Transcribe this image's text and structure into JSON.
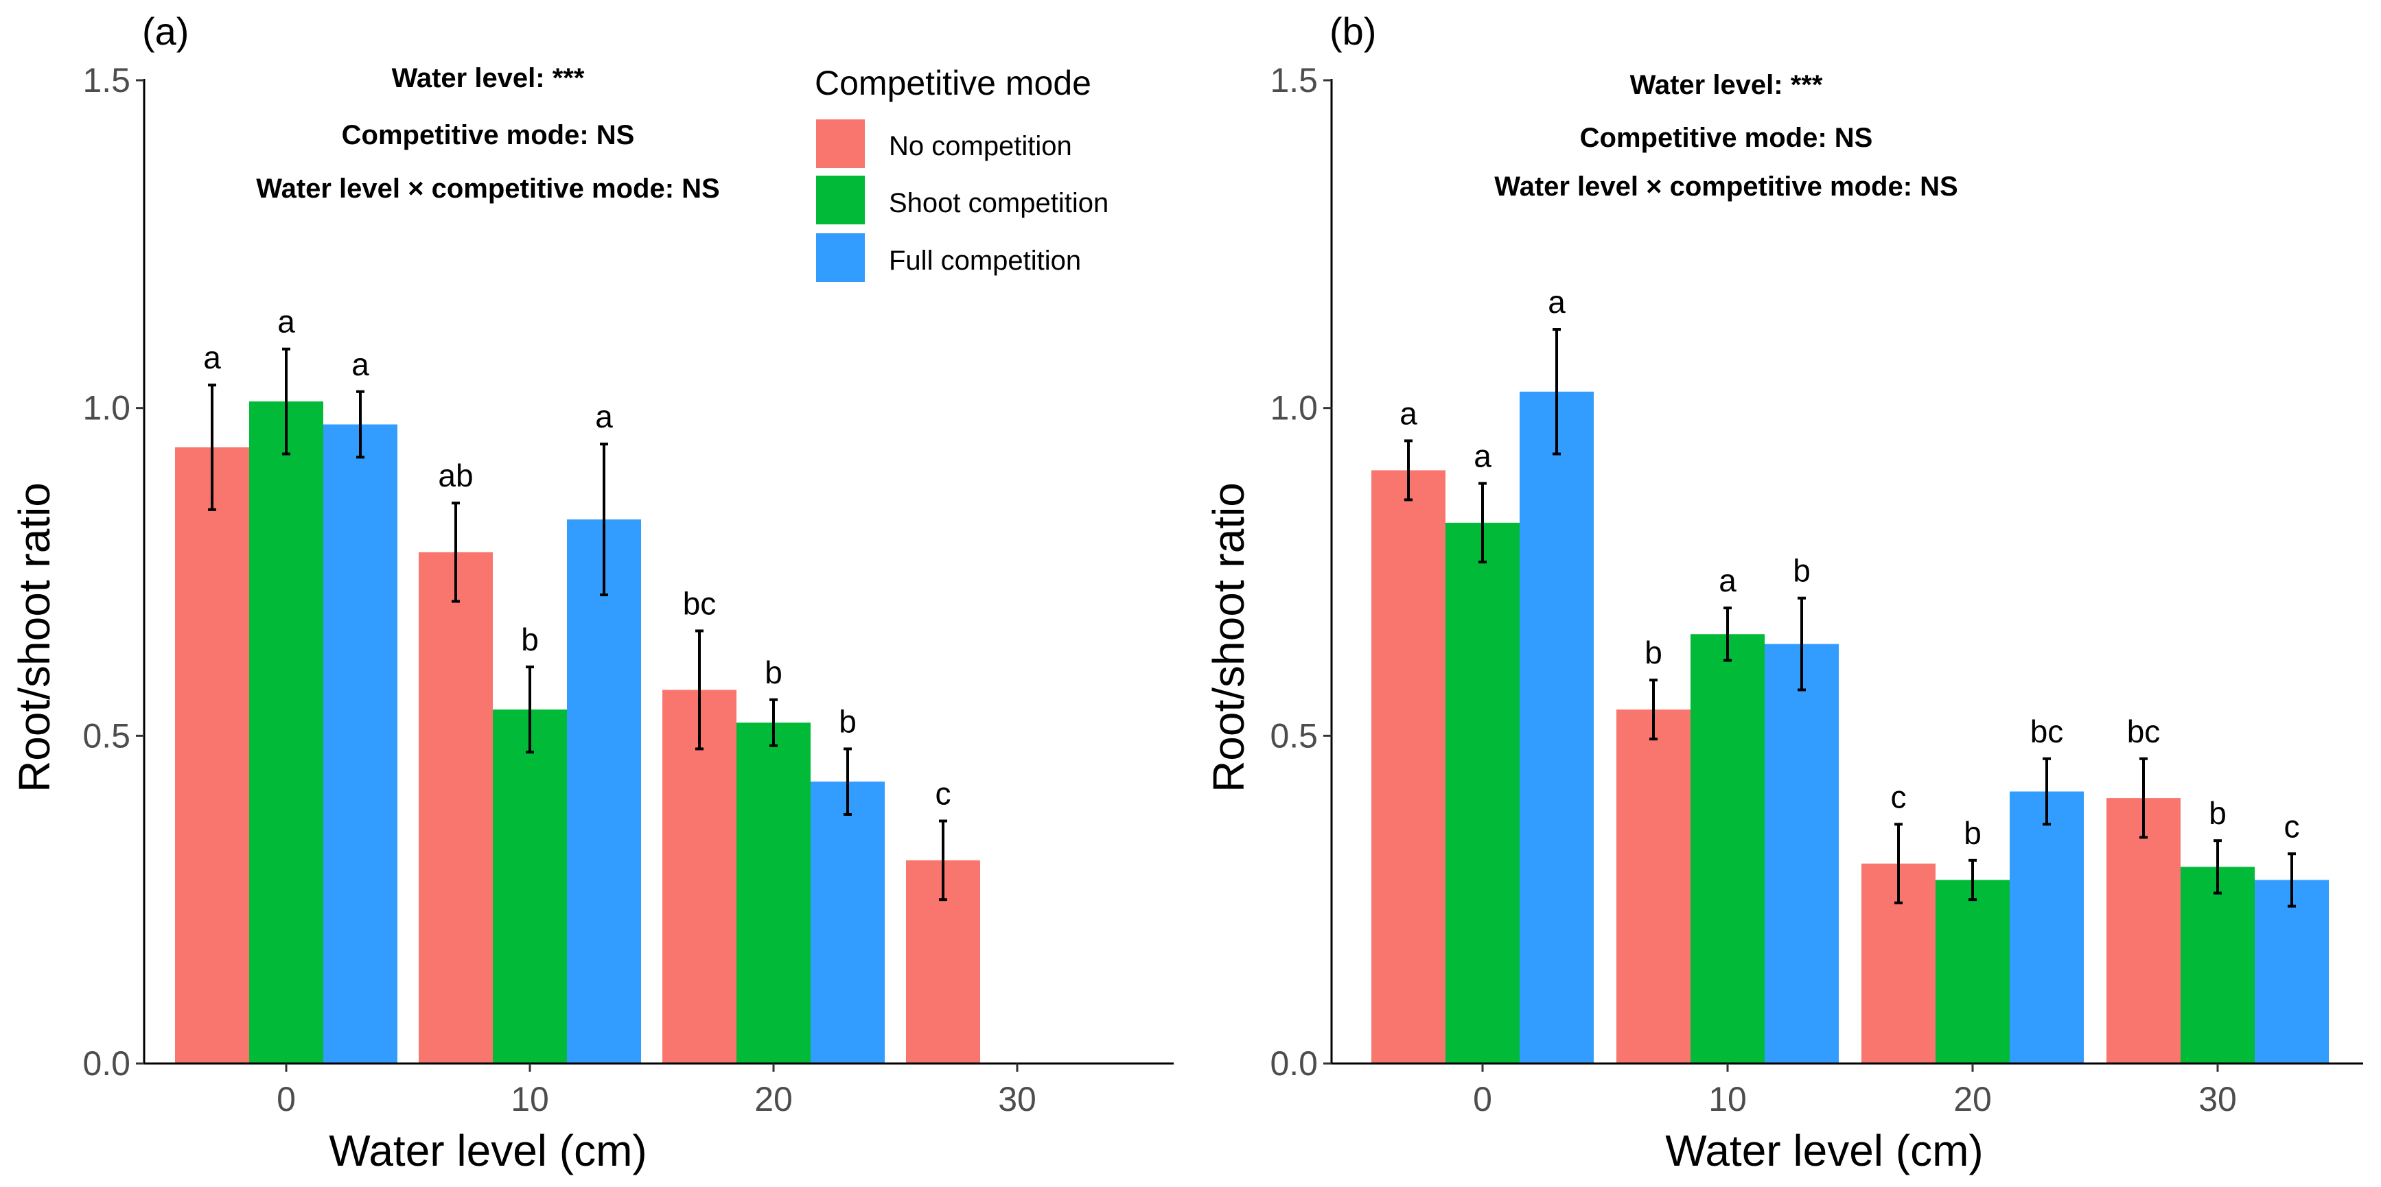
{
  "chart_data": [
    {
      "type": "bar",
      "panel_label": "(a)",
      "categories": [
        "0",
        "10",
        "20",
        "30"
      ],
      "xlabel": "Water level (cm)",
      "ylabel": "Root/shoot ratio",
      "ylim": [
        0,
        1.5
      ],
      "yticks": [
        "0.0",
        "0.5",
        "1.0",
        "1.5"
      ],
      "grid": false,
      "series": [
        {
          "name": "No competition",
          "values": [
            0.94,
            0.78,
            0.57,
            0.31
          ],
          "errors": [
            0.095,
            0.075,
            0.09,
            0.06
          ],
          "letters": [
            "a",
            "ab",
            "bc",
            "c"
          ]
        },
        {
          "name": "Shoot competition",
          "values": [
            1.01,
            0.54,
            0.52,
            null
          ],
          "errors": [
            0.08,
            0.065,
            0.035,
            null
          ],
          "letters": [
            "a",
            "b",
            "b",
            null
          ]
        },
        {
          "name": "Full competition",
          "values": [
            0.975,
            0.83,
            0.43,
            null
          ],
          "errors": [
            0.05,
            0.115,
            0.05,
            null
          ],
          "letters": [
            "a",
            "a",
            "b",
            null
          ]
        }
      ],
      "annotations": [
        "Water level: ***",
        "Competitive mode: NS",
        "Water level × competitive mode: NS"
      ]
    },
    {
      "type": "bar",
      "panel_label": "(b)",
      "categories": [
        "0",
        "10",
        "20",
        "30"
      ],
      "xlabel": "Water level (cm)",
      "ylabel": "Root/shoot ratio",
      "ylim": [
        0,
        1.5
      ],
      "yticks": [
        "0.0",
        "0.5",
        "1.0",
        "1.5"
      ],
      "grid": false,
      "series": [
        {
          "name": "No competition",
          "values": [
            0.905,
            0.54,
            0.305,
            0.405
          ],
          "errors": [
            0.045,
            0.045,
            0.06,
            0.06
          ],
          "letters": [
            "a",
            "b",
            "c",
            "bc"
          ]
        },
        {
          "name": "Shoot competition",
          "values": [
            0.825,
            0.655,
            0.28,
            0.3
          ],
          "errors": [
            0.06,
            0.04,
            0.03,
            0.04
          ],
          "letters": [
            "a",
            "a",
            "b",
            "b"
          ]
        },
        {
          "name": "Full competition",
          "values": [
            1.025,
            0.64,
            0.415,
            0.28
          ],
          "errors": [
            0.095,
            0.07,
            0.05,
            0.04
          ],
          "letters": [
            "a",
            "b",
            "bc",
            "c"
          ]
        }
      ],
      "annotations": [
        "Water level: ***",
        "Competitive mode: NS",
        "Water level × competitive mode: NS"
      ]
    }
  ],
  "legend": {
    "title": "Competitive mode",
    "items": [
      {
        "label": "No competition",
        "color": "#F8766D"
      },
      {
        "label": "Shoot competition",
        "color": "#00BA38"
      },
      {
        "label": "Full competition",
        "color": "#339CFF"
      }
    ]
  }
}
